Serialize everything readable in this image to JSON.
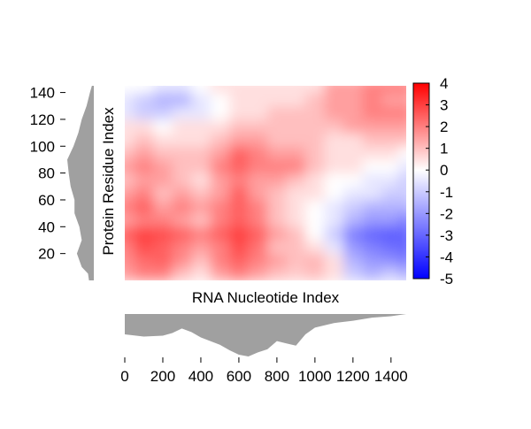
{
  "chart_data": {
    "type": "heatmap",
    "title": "",
    "xlabel": "RNA Nucleotide Index",
    "ylabel": "Protein Residue Index",
    "xlim": [
      0,
      1480
    ],
    "ylim": [
      0,
      145
    ],
    "x_ticks": [
      0,
      200,
      400,
      600,
      800,
      1000,
      1200,
      1400
    ],
    "y_ticks": [
      20,
      40,
      60,
      80,
      100,
      120,
      140
    ],
    "colorbar": {
      "min": -5,
      "max": 4,
      "ticks": [
        4,
        3,
        2,
        1,
        0,
        -1,
        -2,
        -3,
        -4,
        -5
      ],
      "colors": {
        "negative": "#0000ff",
        "zero": "#ffffff",
        "positive": "#ff0000"
      }
    },
    "grid": false,
    "legend": "none",
    "x_grid": [
      0,
      100,
      200,
      300,
      400,
      500,
      600,
      700,
      800,
      900,
      1000,
      1100,
      1200,
      1300,
      1400,
      1480
    ],
    "y_grid": [
      5,
      15,
      25,
      35,
      45,
      55,
      65,
      75,
      85,
      95,
      105,
      115,
      125,
      135,
      145
    ],
    "z": [
      [
        1.5,
        2.0,
        2.0,
        1.0,
        0.5,
        1.5,
        2.0,
        1.5,
        1.0,
        0.8,
        1.0,
        0.5,
        -1.0,
        -1.5,
        -1.0,
        -1.5
      ],
      [
        1.8,
        2.3,
        2.5,
        1.8,
        1.0,
        2.0,
        2.5,
        2.0,
        1.5,
        1.0,
        1.2,
        0.5,
        -1.5,
        -2.0,
        -2.2,
        -2.5
      ],
      [
        2.0,
        2.8,
        2.5,
        2.0,
        1.5,
        2.0,
        2.8,
        2.2,
        1.0,
        1.0,
        0.5,
        -0.5,
        -2.0,
        -2.5,
        -2.8,
        -3.0
      ],
      [
        2.5,
        3.0,
        2.8,
        2.5,
        2.0,
        2.5,
        3.0,
        2.5,
        1.5,
        1.0,
        0.0,
        -1.0,
        -2.5,
        -3.0,
        -3.2,
        -3.0
      ],
      [
        1.5,
        2.0,
        2.0,
        1.5,
        1.0,
        2.0,
        2.5,
        2.0,
        1.0,
        0.5,
        0.0,
        -0.5,
        -1.5,
        -2.0,
        -2.0,
        -2.5
      ],
      [
        2.0,
        2.5,
        1.5,
        2.0,
        1.5,
        2.0,
        2.5,
        2.0,
        1.0,
        0.5,
        0.0,
        -0.5,
        -1.0,
        -1.5,
        -1.5,
        -1.5
      ],
      [
        1.5,
        2.0,
        1.0,
        1.5,
        1.0,
        1.5,
        2.5,
        1.5,
        1.0,
        0.5,
        0.5,
        0.0,
        -0.5,
        -0.5,
        -1.0,
        -1.0
      ],
      [
        1.0,
        1.5,
        1.5,
        1.0,
        0.5,
        1.5,
        2.0,
        1.5,
        1.5,
        1.0,
        0.5,
        0.0,
        0.0,
        -0.5,
        -0.5,
        -1.0
      ],
      [
        1.5,
        2.0,
        1.5,
        1.0,
        1.0,
        2.0,
        2.5,
        2.0,
        2.0,
        2.0,
        1.0,
        0.5,
        0.5,
        0.0,
        0.0,
        -0.5
      ],
      [
        1.0,
        1.5,
        1.0,
        1.0,
        1.0,
        1.5,
        2.5,
        2.0,
        1.5,
        1.5,
        1.0,
        0.5,
        0.5,
        0.5,
        0.5,
        0.0
      ],
      [
        0.5,
        1.0,
        0.5,
        0.5,
        0.5,
        1.0,
        1.5,
        1.5,
        1.0,
        1.0,
        1.0,
        0.5,
        0.5,
        1.0,
        1.0,
        1.0
      ],
      [
        0.5,
        0.5,
        0.0,
        0.5,
        0.5,
        0.5,
        1.0,
        1.0,
        1.0,
        1.0,
        1.0,
        1.0,
        1.5,
        1.5,
        1.5,
        1.5
      ],
      [
        -0.5,
        -1.0,
        -1.0,
        -0.5,
        -0.5,
        0.0,
        0.5,
        0.5,
        1.0,
        1.0,
        1.0,
        1.5,
        1.5,
        2.0,
        2.0,
        2.0
      ],
      [
        -0.5,
        -1.0,
        -1.5,
        -1.5,
        -0.5,
        0.0,
        0.5,
        0.5,
        0.5,
        0.5,
        1.0,
        1.5,
        1.5,
        2.0,
        1.5,
        1.5
      ],
      [
        0.0,
        0.0,
        -0.5,
        -0.5,
        0.0,
        0.5,
        0.5,
        0.5,
        0.5,
        0.5,
        0.5,
        1.5,
        1.5,
        2.0,
        2.0,
        2.0
      ]
    ],
    "marginal_x": {
      "x": [
        0,
        100,
        200,
        250,
        300,
        350,
        400,
        450,
        500,
        550,
        600,
        650,
        700,
        750,
        800,
        850,
        900,
        950,
        1000,
        1100,
        1200,
        1300,
        1400,
        1480
      ],
      "values": [
        4.5,
        5.0,
        4.8,
        4.2,
        3.2,
        4.0,
        5.2,
        6.0,
        6.8,
        8.0,
        9.0,
        9.4,
        8.5,
        7.8,
        6.0,
        6.5,
        7.0,
        4.5,
        3.0,
        2.0,
        1.5,
        0.8,
        0.5,
        0.0
      ]
    },
    "marginal_y": {
      "y": [
        0,
        5,
        10,
        20,
        30,
        40,
        50,
        60,
        70,
        80,
        90,
        100,
        110,
        120,
        130,
        140,
        145
      ],
      "values": [
        1.0,
        1.2,
        2.5,
        3.5,
        2.5,
        3.0,
        4.0,
        4.0,
        4.8,
        5.2,
        5.5,
        4.2,
        3.2,
        2.5,
        1.5,
        0.8,
        0.4
      ]
    }
  }
}
